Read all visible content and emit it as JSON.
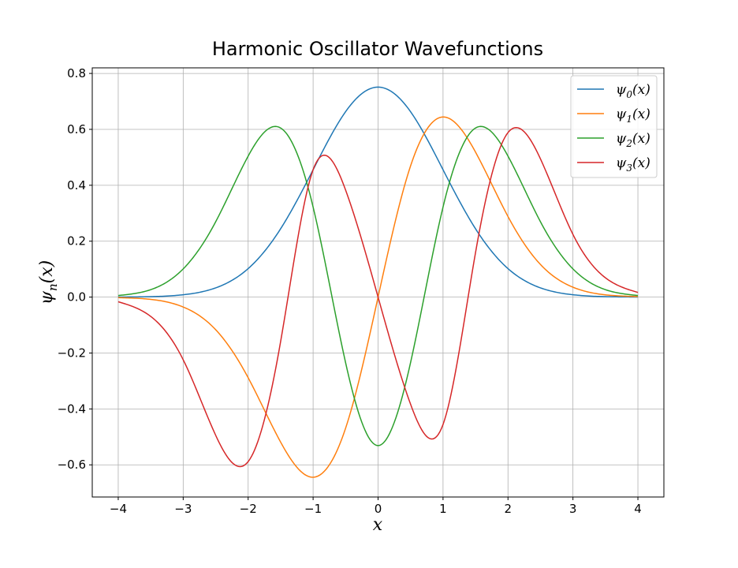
{
  "chart_data": {
    "type": "line",
    "title": "Harmonic Oscillator Wavefunctions",
    "xlabel": "x",
    "ylabel": "ψn(x)",
    "xlim": [
      -4.4,
      4.4
    ],
    "ylim": [
      -0.715,
      0.82
    ],
    "xticks": [
      -4,
      -3,
      -2,
      -1,
      0,
      1,
      2,
      3,
      4
    ],
    "xtick_labels": [
      "−4",
      "−3",
      "−2",
      "−1",
      "0",
      "1",
      "2",
      "3",
      "4"
    ],
    "yticks": [
      -0.6,
      -0.4,
      -0.2,
      0.0,
      0.2,
      0.4,
      0.6,
      0.8
    ],
    "ytick_labels": [
      "−0.6",
      "−0.4",
      "−0.2",
      "0.0",
      "0.2",
      "0.4",
      "0.6",
      "0.8"
    ],
    "grid": true,
    "legend_position": "top-right",
    "x": [
      -4.0,
      -3.5,
      -3.0,
      -2.5,
      -2.0,
      -1.5,
      -1.0,
      -0.5,
      0.0,
      0.5,
      1.0,
      1.5,
      2.0,
      2.5,
      3.0,
      3.5,
      4.0
    ],
    "series": [
      {
        "name": "ψ0(x)",
        "base": "ψ",
        "sub": "0",
        "tail": "(x)",
        "color": "#1f77b4",
        "values": [
          0.0003,
          0.0016,
          0.0084,
          0.033,
          0.1019,
          0.2445,
          0.4556,
          0.6632,
          0.7511,
          0.6632,
          0.4556,
          0.2445,
          0.1019,
          0.033,
          0.0084,
          0.0016,
          0.0003
        ]
      },
      {
        "name": "ψ1(x)",
        "base": "ψ",
        "sub": "1",
        "tail": "(x)",
        "color": "#ff7f0e",
        "values": [
          -0.0019,
          -0.0081,
          -0.0354,
          -0.1166,
          -0.2883,
          -0.5187,
          -0.6443,
          -0.469,
          0.0,
          0.469,
          0.6443,
          0.5187,
          0.2883,
          0.1166,
          0.0354,
          0.0081,
          0.0019
        ]
      },
      {
        "name": "ψ2(x)",
        "base": "ψ",
        "sub": "2",
        "tail": "(x)",
        "color": "#2ca02c",
        "values": [
          0.0057,
          0.0266,
          0.1009,
          0.2694,
          0.5043,
          0.6049,
          0.3222,
          -0.2345,
          -0.5311,
          -0.2345,
          0.3222,
          0.6049,
          0.5043,
          0.2694,
          0.1009,
          0.0266,
          0.0057
        ]
      },
      {
        "name": "ψ3(x)",
        "base": "ψ",
        "sub": "3",
        "tail": "(x)",
        "color": "#d62728",
        "values": [
          -0.0167,
          -0.0691,
          -0.2241,
          -0.4942,
          -0.5885,
          -0.1588,
          0.4556,
          0.3829,
          0.0,
          -0.3829,
          -0.4556,
          0.1588,
          0.5885,
          0.4942,
          0.2241,
          0.0691,
          0.0167
        ]
      }
    ]
  }
}
